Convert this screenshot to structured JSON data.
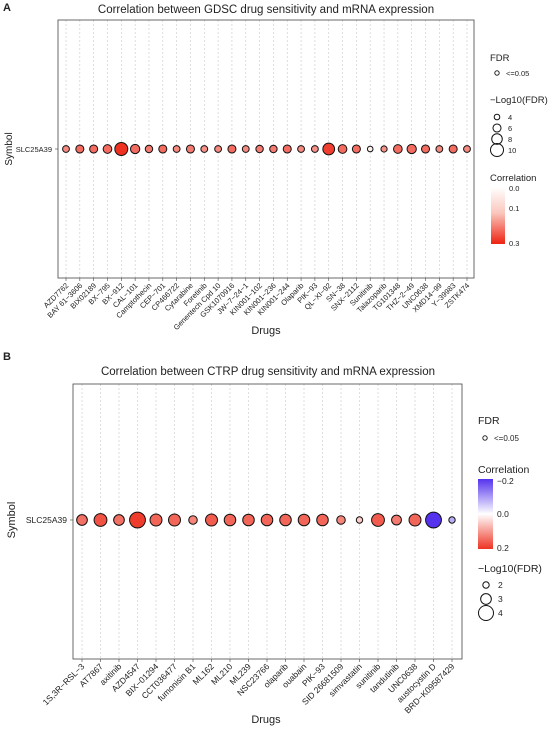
{
  "panels": [
    {
      "panel_label": "A",
      "legend": {
        "fdr_title": "FDR",
        "fdr_item": "<=0.05",
        "size_title": "−Log10(FDR)",
        "size_items": [
          "4",
          "6",
          "8",
          "10"
        ],
        "color_title": "Correlation",
        "color_ticks": [
          "0.0",
          "0.1",
          "0.3"
        ]
      }
    },
    {
      "panel_label": "B",
      "legend": {
        "fdr_title": "FDR",
        "fdr_item": "<=0.05",
        "color_title": "Correlation",
        "color_ticks": [
          "−0.2",
          "0.0",
          "0.2"
        ],
        "size_title": "−Log10(FDR)",
        "size_items": [
          "2",
          "3",
          "4"
        ]
      }
    }
  ],
  "chart_data": [
    {
      "type": "scatter",
      "title": "Correlation between GDSC drug  sensitivity and mRNA expression",
      "xlabel": "Drugs",
      "ylabel": "Symbol",
      "y_categories": [
        "SLC25A39"
      ],
      "categories": [
        "AZD7762",
        "BAY 61−3606",
        "BIX02189",
        "BX−795",
        "BX−912",
        "CAL−101",
        "Camptothecin",
        "CEP−701",
        "CP466722",
        "Cytarabine",
        "Foretinib",
        "Genentech Cpd 10",
        "GSK1070916",
        "JW−7−24−1",
        "KIN001−102",
        "KIN001−236",
        "KIN001−244",
        "Olaparib",
        "PIK−93",
        "QL−XI−92",
        "SN−38",
        "SNX−2112",
        "Sunitinib",
        "Talazoparib",
        "TG101348",
        "THZ−2−49",
        "UNC0638",
        "XMD14−99",
        "Y−39983",
        "ZSTK474"
      ],
      "correlation": [
        0.16,
        0.2,
        0.2,
        0.2,
        0.28,
        0.2,
        0.18,
        0.2,
        0.16,
        0.18,
        0.15,
        0.16,
        0.2,
        0.16,
        0.18,
        0.18,
        0.2,
        0.16,
        0.15,
        0.26,
        0.2,
        0.2,
        0.02,
        0.15,
        0.2,
        0.2,
        0.2,
        0.16,
        0.2,
        0.16
      ],
      "neg_log10_fdr": [
        5,
        6,
        6,
        6.5,
        10,
        7,
        5.5,
        6,
        5,
        6,
        5,
        5,
        6,
        5,
        5.5,
        5.5,
        6,
        5,
        5,
        9,
        6.5,
        6,
        3,
        4.5,
        6.5,
        7,
        6,
        5,
        6,
        5
      ],
      "color_scale": {
        "colors": [
          "#ffffff",
          "#ee2211"
        ],
        "domain": [
          0,
          0.3
        ]
      },
      "size_scale": {
        "domain": [
          4,
          10
        ]
      },
      "grid": true
    },
    {
      "type": "scatter",
      "title": "Correlation between CTRP drug  sensitivity and mRNA expression",
      "xlabel": "Drugs",
      "ylabel": "Symbol",
      "y_categories": [
        "SLC25A39"
      ],
      "categories": [
        "1S,3R−RSL−3",
        "AT7867",
        "axitinib",
        "AZD4547",
        "BIX−01294",
        "CCT036477",
        "fumonisin B1",
        "ML162",
        "ML210",
        "ML239",
        "NSC23766",
        "olaparib",
        "ouabain",
        "PIK−93",
        "SID 26681509",
        "simvastatin",
        "sunitinib",
        "tandutinib",
        "UNC0638",
        "austocystin D",
        "BRD−K09587429"
      ],
      "correlation": [
        0.14,
        0.17,
        0.14,
        0.19,
        0.15,
        0.15,
        0.12,
        0.16,
        0.15,
        0.15,
        0.15,
        0.15,
        0.15,
        0.15,
        0.12,
        0.05,
        0.16,
        0.13,
        0.15,
        -0.2,
        -0.08
      ],
      "neg_log10_fdr": [
        3,
        3.5,
        3,
        4.2,
        3.3,
        3.3,
        2.5,
        3.3,
        3.2,
        3.2,
        3.2,
        3.2,
        3.2,
        3.2,
        2.5,
        1.8,
        3.5,
        2.8,
        3.3,
        4.2,
        2
      ],
      "color_scale": {
        "colors": [
          "#5533ee",
          "#ffffff",
          "#ee3322"
        ],
        "domain": [
          -0.2,
          0,
          0.2
        ]
      },
      "size_scale": {
        "domain": [
          2,
          4
        ]
      },
      "grid": true
    }
  ]
}
